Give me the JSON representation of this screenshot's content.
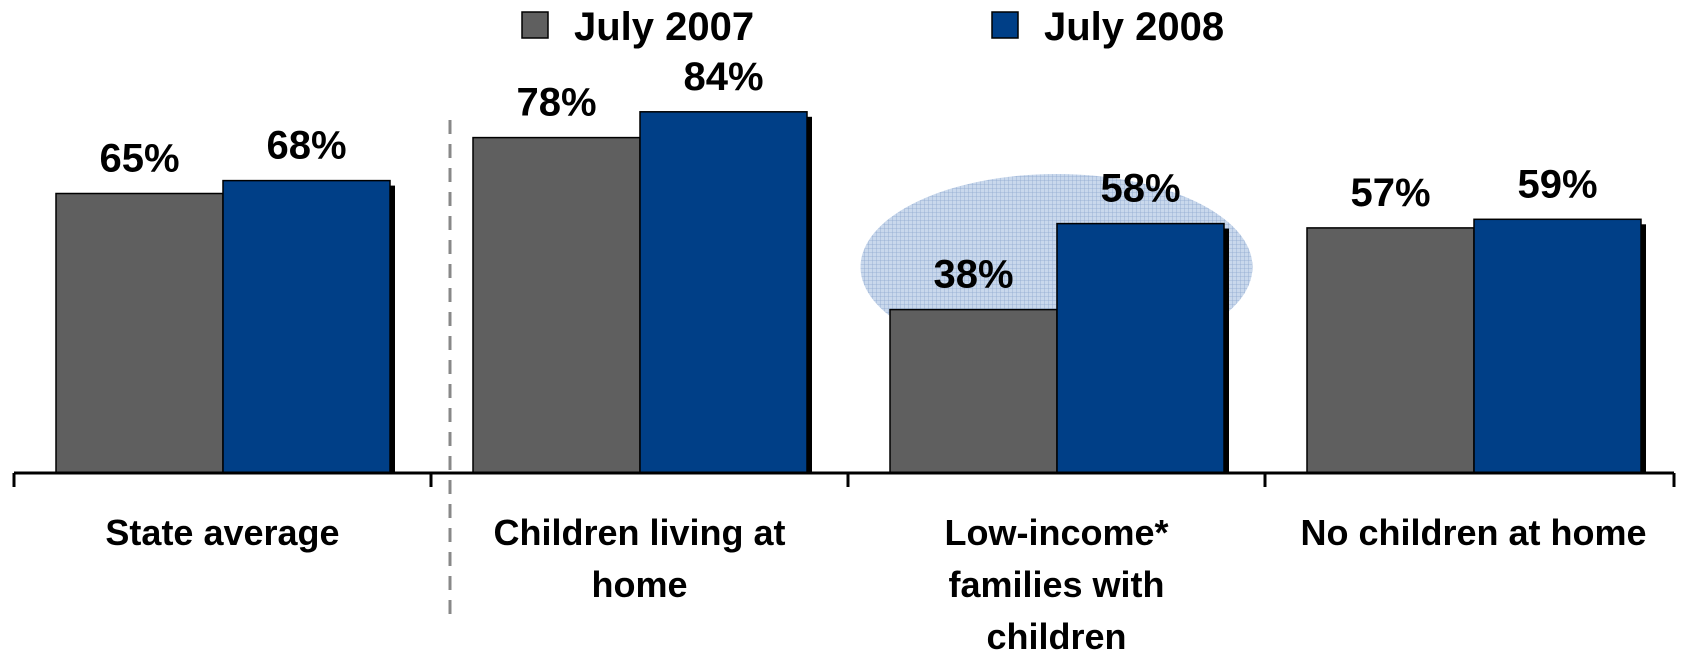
{
  "chart_data": {
    "type": "bar",
    "categories": [
      [
        "State average"
      ],
      [
        "Children living at",
        "home"
      ],
      [
        "Low-income*",
        "families with",
        "children"
      ],
      [
        "No children at home"
      ]
    ],
    "series": [
      {
        "name": "July 2007",
        "values": [
          65,
          78,
          38,
          57
        ],
        "labels": [
          "65%",
          "78%",
          "38%",
          "57%"
        ],
        "color": "#5f5f5f"
      },
      {
        "name": "July 2008",
        "values": [
          68,
          84,
          58,
          59
        ],
        "labels": [
          "68%",
          "84%",
          "58%",
          "59%"
        ],
        "color": "#003f87"
      }
    ],
    "ylim": [
      0,
      100
    ],
    "grid": false,
    "legend": "top-center",
    "highlight_category_index": 2,
    "highlight_color": "#b8cbe4",
    "separator_after_category_index": 0
  }
}
